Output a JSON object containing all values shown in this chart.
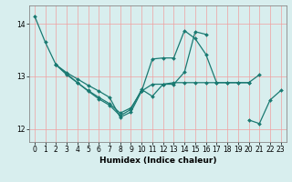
{
  "title": "",
  "xlabel": "Humidex (Indice chaleur)",
  "bg_color": "#d8eeee",
  "grid_color_h": "#f0a0a0",
  "grid_color_v": "#f0a0a0",
  "line_color": "#1a7a72",
  "marker": "D",
  "markersize": 2.0,
  "linewidth": 0.9,
  "xlim": [
    -0.5,
    23.5
  ],
  "ylim": [
    11.75,
    14.35
  ],
  "yticks": [
    12,
    13,
    14
  ],
  "xticks": [
    0,
    1,
    2,
    3,
    4,
    5,
    6,
    7,
    8,
    9,
    10,
    11,
    12,
    13,
    14,
    15,
    16,
    17,
    18,
    19,
    20,
    21,
    22,
    23
  ],
  "series": [
    {
      "x": [
        0,
        1,
        2,
        3,
        4,
        5,
        6,
        7,
        8,
        9,
        10,
        11,
        12,
        13,
        14,
        15,
        16,
        17,
        18,
        19,
        20,
        21
      ],
      "y": [
        14.15,
        13.65,
        13.22,
        13.07,
        12.95,
        12.83,
        12.72,
        12.6,
        12.22,
        12.32,
        12.72,
        12.85,
        12.85,
        12.88,
        12.88,
        12.88,
        12.88,
        12.88,
        12.88,
        12.88,
        12.88,
        13.03
      ]
    },
    {
      "x": [
        2,
        3,
        4,
        5,
        6,
        7,
        8,
        9,
        10,
        11,
        12,
        13,
        14,
        15,
        16,
        17,
        18,
        19,
        20
      ],
      "y": [
        13.22,
        13.03,
        12.88,
        12.73,
        12.6,
        12.48,
        12.3,
        12.4,
        12.72,
        13.33,
        13.35,
        13.35,
        13.87,
        13.72,
        13.42,
        12.88,
        12.88,
        12.88,
        12.88
      ]
    },
    {
      "x": [
        2,
        3,
        4,
        5,
        6,
        7,
        8,
        9,
        10,
        11,
        12,
        13,
        14,
        15,
        16
      ],
      "y": [
        13.22,
        13.05,
        12.88,
        12.72,
        12.57,
        12.45,
        12.25,
        12.37,
        12.75,
        12.62,
        12.85,
        12.85,
        13.08,
        13.85,
        13.8
      ]
    },
    {
      "x": [
        20,
        21,
        22,
        23
      ],
      "y": [
        12.17,
        12.1,
        12.55,
        12.73
      ]
    }
  ]
}
